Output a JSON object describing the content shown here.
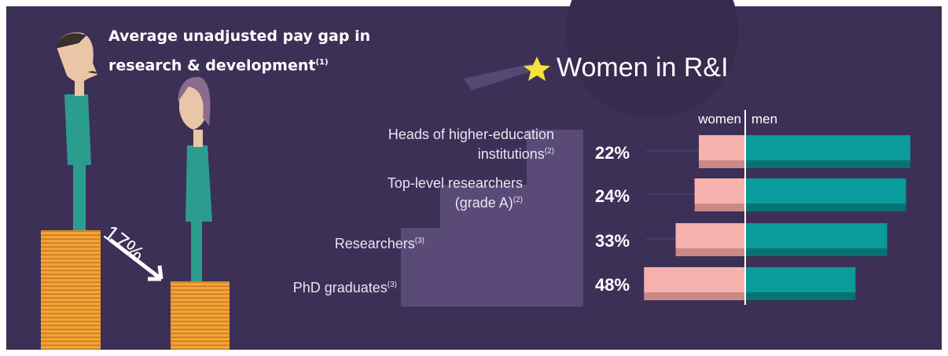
{
  "pay_gap": {
    "title": "Average unadjusted pay gap in research & development",
    "title_note": "(1)",
    "value": 17,
    "value_label": "17%"
  },
  "chart_data": {
    "type": "bar",
    "title": "Women in R&I",
    "categories": [
      "Heads of higher-education institutions",
      "Top-level researchers (grade A)",
      "Researchers",
      "PhD graduates"
    ],
    "category_notes": [
      "(2)",
      "(2)",
      "(3)",
      "(3)"
    ],
    "series": [
      {
        "name": "women",
        "color": "#f7b2ae",
        "values": [
          22,
          24,
          33,
          48
        ],
        "value_labels": [
          "22%",
          "24%",
          "33%",
          "48%"
        ]
      },
      {
        "name": "men",
        "color": "#0a9b9b",
        "values": [
          78,
          76,
          67,
          52
        ]
      }
    ]
  }
}
